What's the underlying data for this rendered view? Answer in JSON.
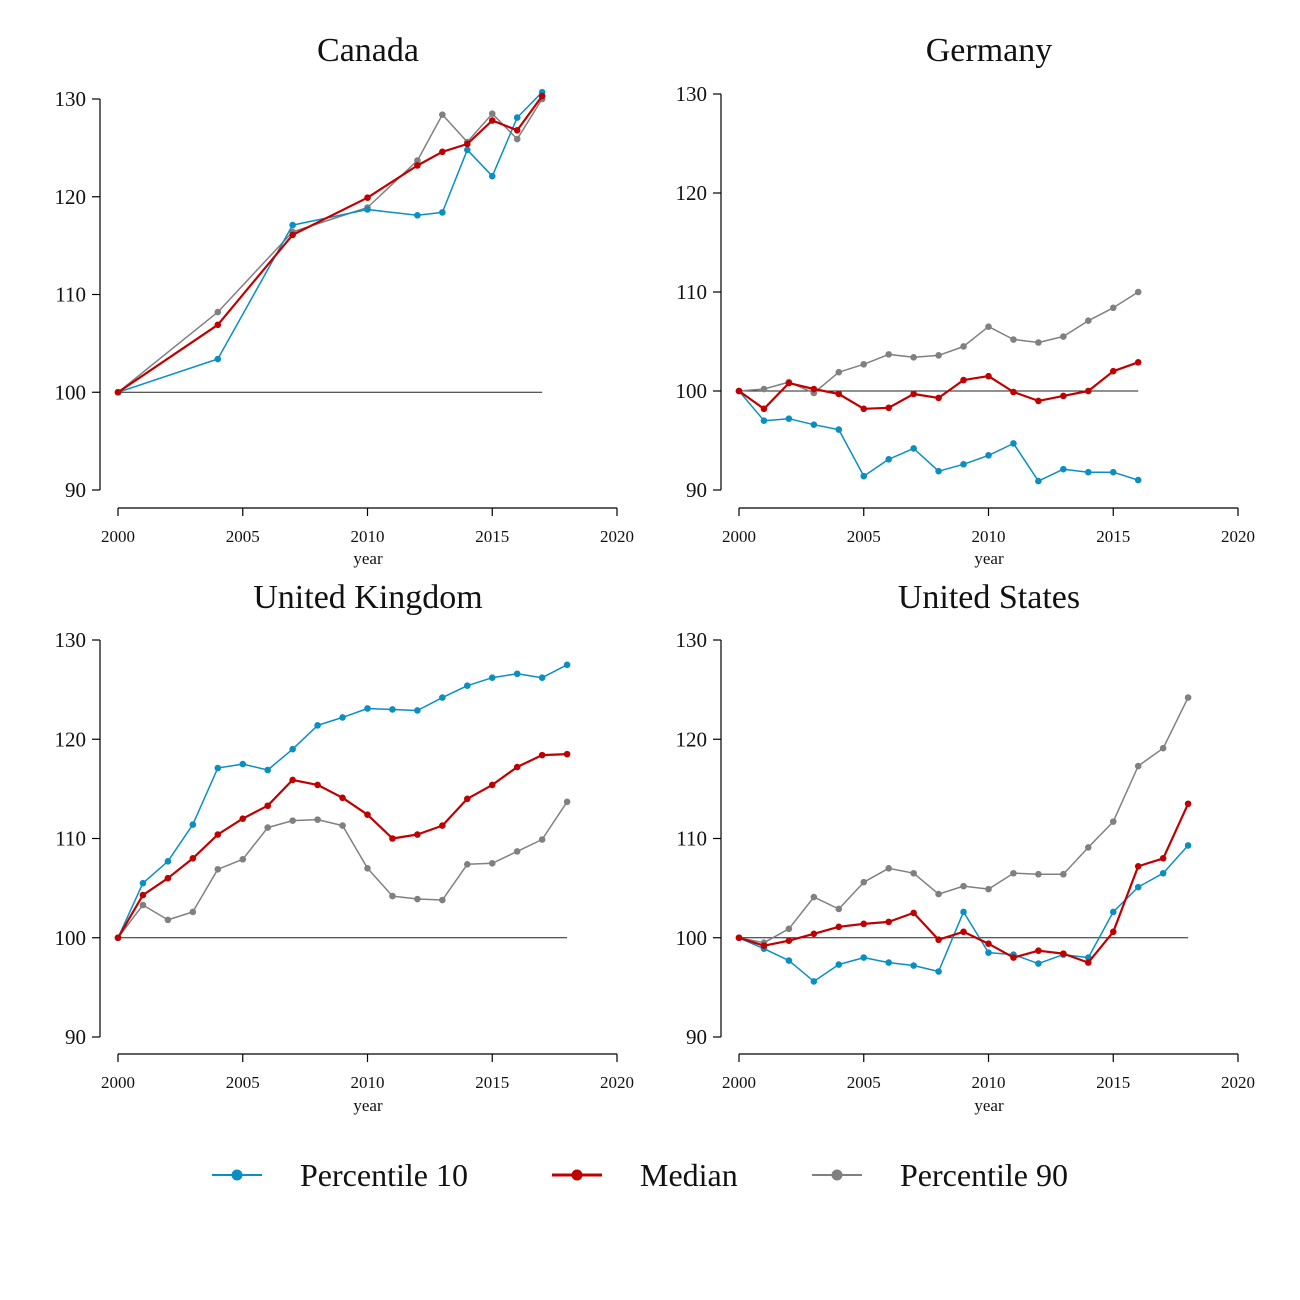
{
  "chart_data": [
    {
      "type": "line",
      "title": "Canada",
      "xlabel": "year",
      "ylabel": "",
      "xlim": [
        2000,
        2020
      ],
      "ylim": [
        90,
        130
      ],
      "xticks": [
        2000,
        2005,
        2010,
        2015,
        2020
      ],
      "yticks": [
        90,
        100,
        110,
        120,
        130
      ],
      "reference_line": 100,
      "x": [
        2000,
        2004,
        2007,
        2010,
        2012,
        2013,
        2014,
        2015,
        2016,
        2017
      ],
      "series": [
        {
          "name": "Percentile 10",
          "values": [
            100,
            103.4,
            117.1,
            118.7,
            118.1,
            118.4,
            124.8,
            122.1,
            128.1,
            130.7
          ]
        },
        {
          "name": "Median",
          "values": [
            100,
            106.9,
            116.1,
            119.9,
            123.2,
            124.6,
            125.4,
            127.8,
            126.8,
            130.3
          ]
        },
        {
          "name": "Percentile 90",
          "values": [
            100,
            108.2,
            116.4,
            118.9,
            123.7,
            128.4,
            125.6,
            128.5,
            125.9,
            130.0
          ]
        }
      ]
    },
    {
      "type": "line",
      "title": "Germany",
      "xlabel": "year",
      "ylabel": "",
      "xlim": [
        2000,
        2020
      ],
      "ylim": [
        90,
        130
      ],
      "xticks": [
        2000,
        2005,
        2010,
        2015,
        2020
      ],
      "yticks": [
        90,
        100,
        110,
        120,
        130
      ],
      "reference_line": 100,
      "x": [
        2000,
        2001,
        2002,
        2003,
        2004,
        2005,
        2006,
        2007,
        2008,
        2009,
        2010,
        2011,
        2012,
        2013,
        2014,
        2015,
        2016
      ],
      "series": [
        {
          "name": "Percentile 10",
          "values": [
            100,
            97.0,
            97.2,
            96.6,
            96.1,
            91.4,
            93.1,
            94.2,
            91.9,
            92.6,
            93.5,
            94.7,
            90.9,
            92.1,
            91.8,
            91.8,
            91.0
          ]
        },
        {
          "name": "Median",
          "values": [
            100,
            98.2,
            100.8,
            100.2,
            99.7,
            98.2,
            98.3,
            99.7,
            99.3,
            101.1,
            101.5,
            99.9,
            99.0,
            99.5,
            100.0,
            102.0,
            102.9
          ]
        },
        {
          "name": "Percentile 90",
          "values": [
            100,
            100.2,
            100.9,
            99.8,
            101.9,
            102.7,
            103.7,
            103.4,
            103.6,
            104.5,
            106.5,
            105.2,
            104.9,
            105.5,
            107.1,
            108.4,
            110.0
          ]
        }
      ]
    },
    {
      "type": "line",
      "title": "United Kingdom",
      "xlabel": "year",
      "ylabel": "",
      "xlim": [
        2000,
        2020
      ],
      "ylim": [
        90,
        130
      ],
      "xticks": [
        2000,
        2005,
        2010,
        2015,
        2020
      ],
      "yticks": [
        90,
        100,
        110,
        120,
        130
      ],
      "reference_line": 100,
      "x": [
        2000,
        2001,
        2002,
        2003,
        2004,
        2005,
        2006,
        2007,
        2008,
        2009,
        2010,
        2011,
        2012,
        2013,
        2014,
        2015,
        2016,
        2017,
        2018
      ],
      "series": [
        {
          "name": "Percentile 10",
          "values": [
            100,
            105.5,
            107.7,
            111.4,
            117.1,
            117.5,
            116.9,
            119.0,
            121.4,
            122.2,
            123.1,
            123.0,
            122.9,
            124.2,
            125.4,
            126.2,
            126.6,
            126.2,
            127.5
          ]
        },
        {
          "name": "Median",
          "values": [
            100,
            104.3,
            106.0,
            108.0,
            110.4,
            112.0,
            113.3,
            115.9,
            115.4,
            114.1,
            112.4,
            110.0,
            110.4,
            111.3,
            114.0,
            115.4,
            117.2,
            118.4,
            118.5
          ]
        },
        {
          "name": "Percentile 90",
          "values": [
            100,
            103.3,
            101.8,
            102.6,
            106.9,
            107.9,
            111.1,
            111.8,
            111.9,
            111.3,
            107.0,
            104.2,
            103.9,
            103.8,
            107.4,
            107.5,
            108.7,
            109.9,
            113.7
          ]
        }
      ]
    },
    {
      "type": "line",
      "title": "United States",
      "xlabel": "year",
      "ylabel": "",
      "xlim": [
        2000,
        2020
      ],
      "ylim": [
        90,
        130
      ],
      "xticks": [
        2000,
        2005,
        2010,
        2015,
        2020
      ],
      "yticks": [
        90,
        100,
        110,
        120,
        130
      ],
      "reference_line": 100,
      "x": [
        2000,
        2001,
        2002,
        2003,
        2004,
        2005,
        2006,
        2007,
        2008,
        2009,
        2010,
        2011,
        2012,
        2013,
        2014,
        2015,
        2016,
        2017,
        2018
      ],
      "series": [
        {
          "name": "Percentile 10",
          "values": [
            100,
            98.9,
            97.7,
            95.6,
            97.3,
            98.0,
            97.5,
            97.2,
            96.6,
            102.6,
            98.5,
            98.3,
            97.4,
            98.3,
            98.0,
            102.6,
            105.1,
            106.5,
            109.3
          ]
        },
        {
          "name": "Median",
          "values": [
            100,
            99.2,
            99.7,
            100.4,
            101.1,
            101.4,
            101.6,
            102.5,
            99.8,
            100.6,
            99.4,
            98.0,
            98.7,
            98.4,
            97.5,
            100.6,
            107.2,
            108.0,
            113.5
          ]
        },
        {
          "name": "Percentile 90",
          "values": [
            100,
            99.5,
            100.9,
            104.1,
            102.9,
            105.6,
            107.0,
            106.5,
            104.4,
            105.2,
            104.9,
            106.5,
            106.4,
            106.4,
            109.1,
            111.7,
            117.3,
            119.1,
            124.2
          ]
        }
      ]
    }
  ],
  "legend": {
    "placement": "bottom",
    "items": [
      {
        "label": "Percentile 10",
        "color": "#0a8fc2"
      },
      {
        "label": "Median",
        "color": "#c00000"
      },
      {
        "label": "Percentile 90",
        "color": "#808080"
      }
    ]
  }
}
